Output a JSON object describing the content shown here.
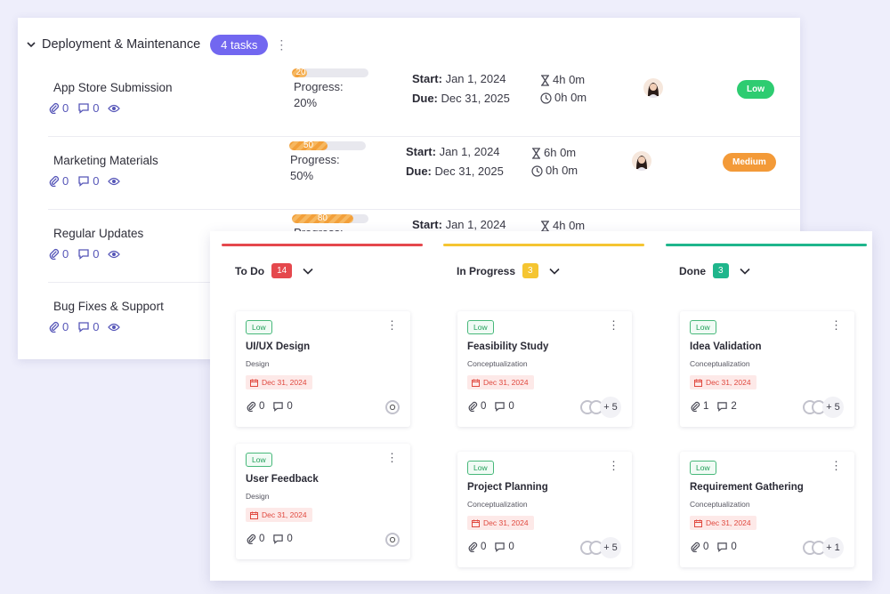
{
  "group": {
    "title": "Deployment & Maintenance",
    "badge": "4 tasks"
  },
  "tasks": [
    {
      "name": "App Store Submission",
      "attachments": "0",
      "comments": "0",
      "progress_value": "20",
      "progress_label": "Progress:",
      "progress_pct": "20%",
      "start_label": "Start:",
      "start": "Jan 1, 2024",
      "due_label": "Due:",
      "due": "Dec 31, 2025",
      "estimate": "4h 0m",
      "logged": "0h 0m",
      "priority": "Low",
      "priority_color": "#2ecc71"
    },
    {
      "name": "Marketing Materials",
      "attachments": "0",
      "comments": "0",
      "progress_value": "50",
      "progress_label": "Progress:",
      "progress_pct": "50%",
      "start_label": "Start:",
      "start": "Jan 1, 2024",
      "due_label": "Due:",
      "due": "Dec 31, 2025",
      "estimate": "6h 0m",
      "logged": "0h 0m",
      "priority": "Medium",
      "priority_color": "#f39a38"
    },
    {
      "name": "Regular Updates",
      "attachments": "0",
      "comments": "0",
      "progress_value": "80",
      "progress_label": "Progress:",
      "start_label": "Start:",
      "start": "Jan 1, 2024",
      "estimate": "4h 0m",
      "priority_color": "#2ecc71"
    },
    {
      "name": "Bug Fixes & Support",
      "attachments": "0",
      "comments": "0"
    }
  ],
  "board": {
    "columns": [
      {
        "title": "To Do",
        "count": "14",
        "color": "#e5484d",
        "cards": [
          {
            "tag": "Low",
            "title": "UI/UX Design",
            "sub": "Design",
            "date": "Dec 31, 2024",
            "attachments": "0",
            "comments": "0"
          },
          {
            "tag": "Low",
            "title": "User Feedback",
            "sub": "Design",
            "date": "Dec 31, 2024",
            "attachments": "0",
            "comments": "0"
          }
        ]
      },
      {
        "title": "In Progress",
        "count": "3",
        "color": "#f5c531",
        "cards": [
          {
            "tag": "Low",
            "title": "Feasibility Study",
            "sub": "Conceptualization",
            "date": "Dec 31, 2024",
            "attachments": "0",
            "comments": "0",
            "more": "+ 5"
          },
          {
            "tag": "Low",
            "title": "Project Planning",
            "sub": "Conceptualization",
            "date": "Dec 31, 2024",
            "attachments": "0",
            "comments": "0",
            "more": "+ 5"
          }
        ]
      },
      {
        "title": "Done",
        "count": "3",
        "color": "#1fb68c",
        "cards": [
          {
            "tag": "Low",
            "title": "Idea Validation",
            "sub": "Conceptualization",
            "date": "Dec 31, 2024",
            "attachments": "1",
            "comments": "2",
            "more": "+ 5"
          },
          {
            "tag": "Low",
            "title": "Requirement Gathering",
            "sub": "Conceptualization",
            "date": "Dec 31, 2024",
            "attachments": "0",
            "comments": "0",
            "more": "+ 1"
          }
        ]
      }
    ]
  }
}
